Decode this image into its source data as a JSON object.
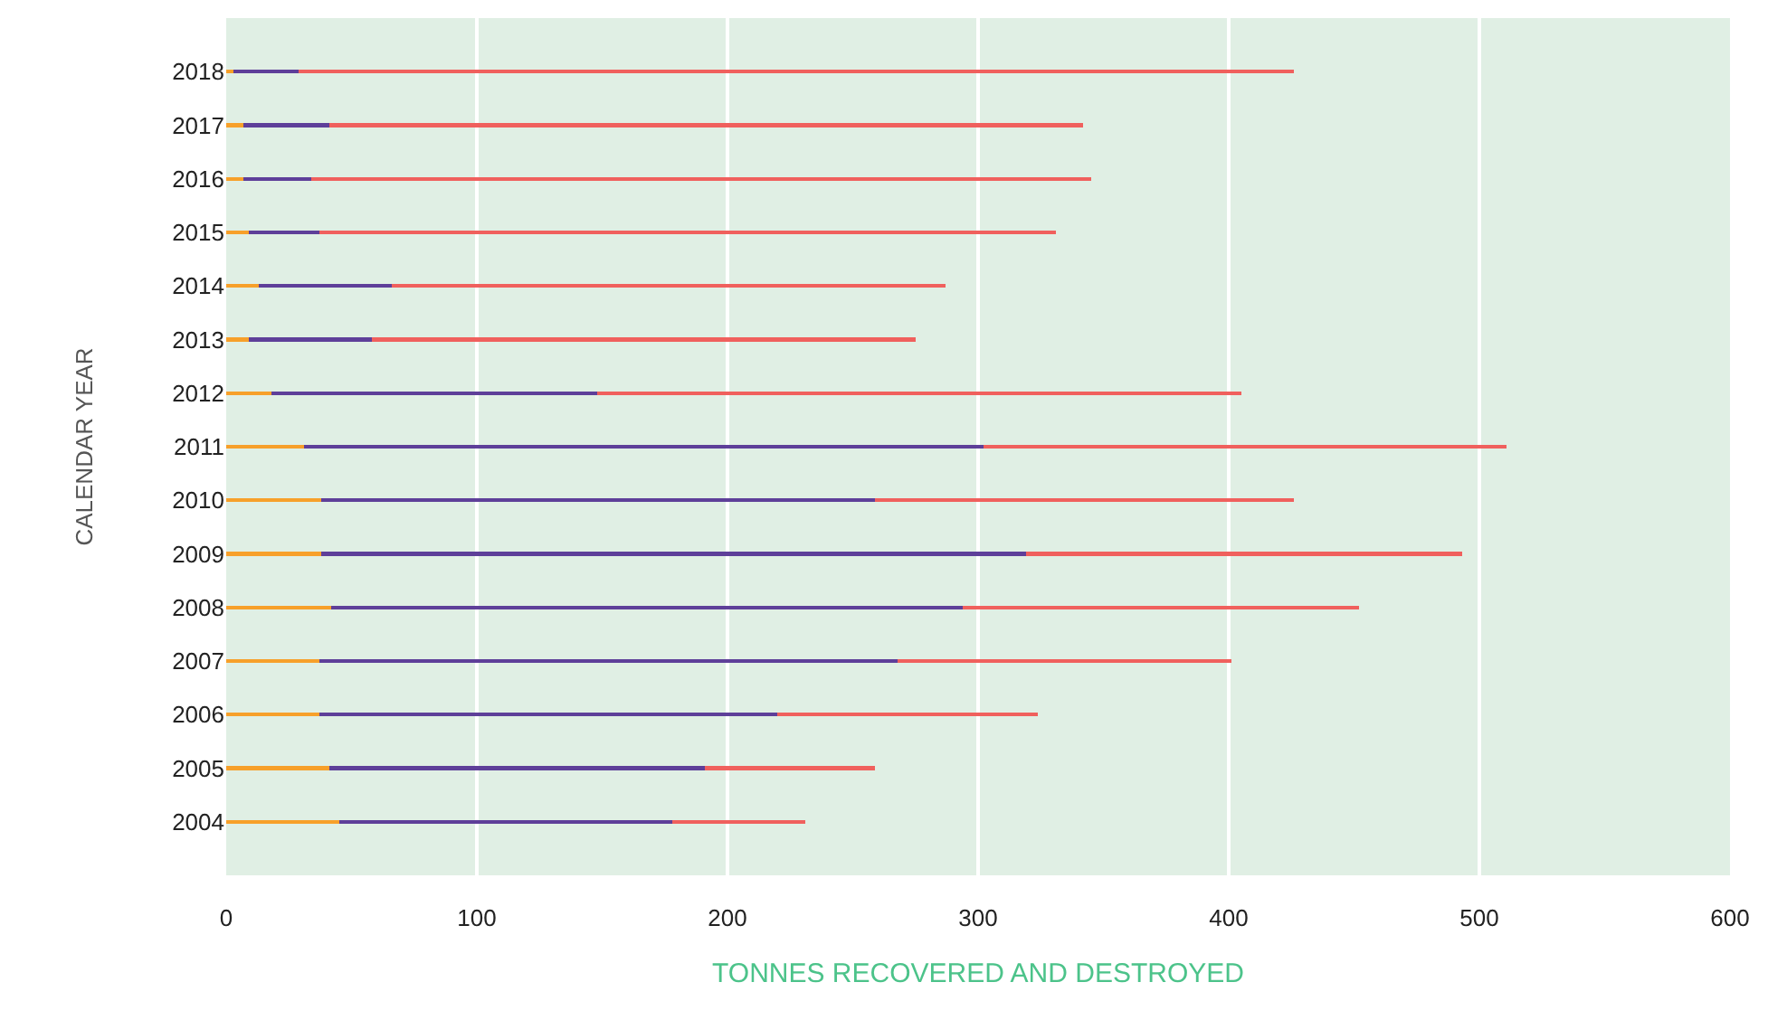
{
  "chart_data": {
    "type": "bar",
    "orientation": "horizontal",
    "stacked": true,
    "xlabel": "TONNES RECOVERED AND DESTROYED",
    "ylabel": "CALENDAR YEAR",
    "categories": [
      "2018",
      "2017",
      "2016",
      "2015",
      "2014",
      "2013",
      "2012",
      "2011",
      "2010",
      "2009",
      "2008",
      "2007",
      "2006",
      "2005",
      "2004"
    ],
    "series": [
      {
        "color": "#f7a02a",
        "values": [
          3,
          7,
          7,
          9,
          13,
          9,
          18,
          31,
          38,
          38,
          42,
          37,
          37,
          41,
          45
        ]
      },
      {
        "color": "#5e3f99",
        "values": [
          26,
          34,
          27,
          28,
          53,
          49,
          130,
          271,
          221,
          281,
          252,
          231,
          183,
          150,
          133
        ]
      },
      {
        "color": "#f0605d",
        "values": [
          397,
          301,
          311,
          294,
          221,
          217,
          257,
          209,
          167,
          174,
          158,
          133,
          104,
          68,
          53
        ]
      }
    ],
    "xlim": [
      0,
      600
    ],
    "xticks": [
      0,
      100,
      200,
      300,
      400,
      500,
      600
    ],
    "grid": "x"
  }
}
